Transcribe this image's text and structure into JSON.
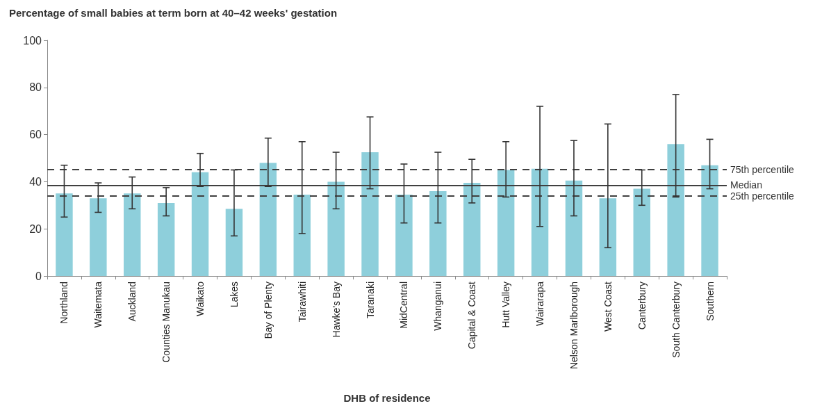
{
  "chart_data": {
    "type": "bar",
    "title": "Percentage of small babies at term born at 40–42 weeks' gestation",
    "xlabel": "DHB of residence",
    "categories": [
      "Northland",
      "Waitemata",
      "Auckland",
      "Counties Manukau",
      "Waikato",
      "Lakes",
      "Bay of Plenty",
      "Tairawhiti",
      "Hawke's Bay",
      "Taranaki",
      "MidCentral",
      "Whanganui",
      "Capital & Coast",
      "Hutt Valley",
      "Wairarapa",
      "Nelson Marlborough",
      "West Coast",
      "Canterbury",
      "South Canterbury",
      "Southern"
    ],
    "values": [
      35,
      33,
      35,
      31,
      44,
      28.5,
      48,
      34.5,
      40,
      52.5,
      34.5,
      36,
      39.5,
      45,
      45.5,
      40.5,
      33,
      37,
      56,
      47
    ],
    "errors": [
      [
        25,
        47
      ],
      [
        27,
        39.5
      ],
      [
        28.5,
        42
      ],
      [
        25.5,
        37.5
      ],
      [
        38,
        52
      ],
      [
        17,
        45
      ],
      [
        38,
        58.5
      ],
      [
        18,
        57
      ],
      [
        28.5,
        52.5
      ],
      [
        37,
        67.5
      ],
      [
        22.5,
        47.5
      ],
      [
        22.5,
        52.5
      ],
      [
        31,
        49.5
      ],
      [
        33.5,
        57
      ],
      [
        21,
        72
      ],
      [
        25.5,
        57.5
      ],
      [
        12,
        64.5
      ],
      [
        30,
        45
      ],
      [
        33.5,
        77
      ],
      [
        37,
        58
      ]
    ],
    "color": "#8ecfdb",
    "ylim": [
      0,
      100
    ],
    "yticks": [
      0,
      20,
      40,
      60,
      80,
      100
    ],
    "grid": false,
    "ref_lines": [
      {
        "axis": "y",
        "value": 45.2,
        "label": "75th percentile",
        "color": "#404040",
        "line_style": "dashed"
      },
      {
        "axis": "y",
        "value": 38.5,
        "label": "Median",
        "color": "#404040",
        "line_style": "solid"
      },
      {
        "axis": "y",
        "value": 34,
        "label": "25th percentile",
        "color": "#404040",
        "line_style": "dashed"
      }
    ]
  }
}
